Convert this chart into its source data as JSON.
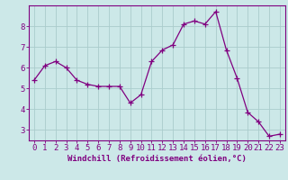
{
  "x": [
    0,
    1,
    2,
    3,
    4,
    5,
    6,
    7,
    8,
    9,
    10,
    11,
    12,
    13,
    14,
    15,
    16,
    17,
    18,
    19,
    20,
    21,
    22,
    23
  ],
  "y": [
    5.4,
    6.1,
    6.3,
    6.0,
    5.4,
    5.2,
    5.1,
    5.1,
    5.1,
    4.3,
    4.7,
    6.3,
    6.85,
    7.1,
    8.1,
    8.25,
    8.1,
    8.7,
    6.85,
    5.5,
    3.85,
    3.4,
    2.7,
    2.8
  ],
  "line_color": "#800080",
  "marker": "+",
  "marker_size": 4,
  "bg_color": "#cce8e8",
  "grid_color": "#aacccc",
  "axis_color": "#800080",
  "xlabel": "Windchill (Refroidissement éolien,°C)",
  "xlim": [
    -0.5,
    23.5
  ],
  "ylim": [
    2.5,
    9.0
  ],
  "yticks": [
    3,
    4,
    5,
    6,
    7,
    8
  ],
  "xticks": [
    0,
    1,
    2,
    3,
    4,
    5,
    6,
    7,
    8,
    9,
    10,
    11,
    12,
    13,
    14,
    15,
    16,
    17,
    18,
    19,
    20,
    21,
    22,
    23
  ],
  "xlabel_fontsize": 6.5,
  "tick_fontsize": 6.5,
  "label_color": "#800080"
}
